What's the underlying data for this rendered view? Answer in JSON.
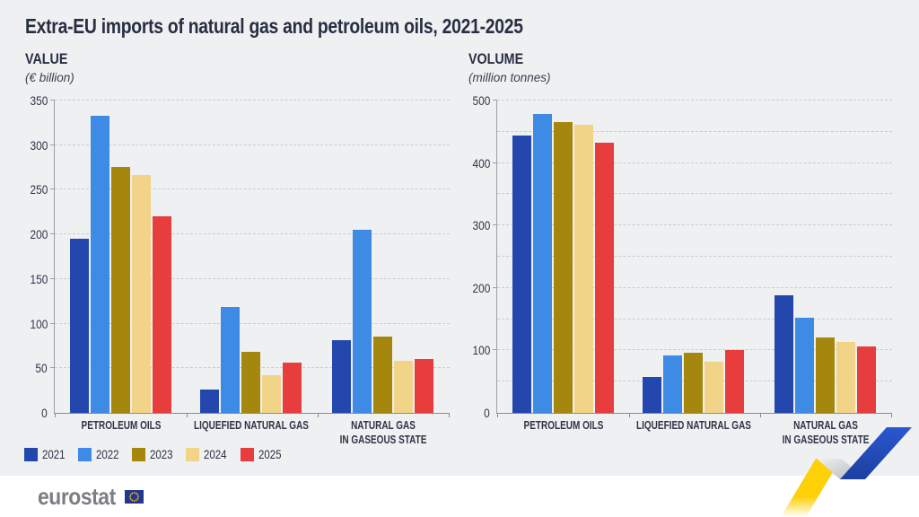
{
  "page": {
    "title": "Extra-EU imports of natural gas and petroleum oils, 2021-2025",
    "background_color": "#eff0f1"
  },
  "legend": {
    "position": "bottom-left",
    "items": [
      {
        "label": "2021",
        "color": "#2447ad"
      },
      {
        "label": "2022",
        "color": "#3d8be4"
      },
      {
        "label": "2023",
        "color": "#a5870e"
      },
      {
        "label": "2024",
        "color": "#f2d489"
      },
      {
        "label": "2025",
        "color": "#e73d3d"
      }
    ]
  },
  "chart_data": [
    {
      "type": "bar",
      "title": "VALUE",
      "subtitle": "(€ billion)",
      "ylabel": "€ billion",
      "ylim": [
        0,
        350
      ],
      "grid_step": 50,
      "label_step": 50,
      "grid": "horizontal-dashed",
      "categories": [
        "PETROLEUM OILS",
        "LIQUEFIED NATURAL GAS",
        "NATURAL GAS\nIN GASEOUS STATE"
      ],
      "series": [
        {
          "name": "2021",
          "color": "#2447ad",
          "values": [
            195,
            26,
            81
          ]
        },
        {
          "name": "2022",
          "color": "#3d8be4",
          "values": [
            333,
            119,
            205
          ]
        },
        {
          "name": "2023",
          "color": "#a5870e",
          "values": [
            276,
            68,
            86
          ]
        },
        {
          "name": "2024",
          "color": "#f2d489",
          "values": [
            267,
            42,
            58
          ]
        },
        {
          "name": "2025",
          "color": "#e73d3d",
          "values": [
            220,
            56,
            60
          ]
        }
      ]
    },
    {
      "type": "bar",
      "title": "VOLUME",
      "subtitle": "(million tonnes)",
      "ylabel": "million tonnes",
      "ylim": [
        0,
        500
      ],
      "grid_step": 50,
      "label_step": 100,
      "grid": "horizontal-dashed",
      "categories": [
        "PETROLEUM OILS",
        "LIQUEFIED NATURAL GAS",
        "NATURAL GAS\nIN GASEOUS STATE"
      ],
      "series": [
        {
          "name": "2021",
          "color": "#2447ad",
          "values": [
            444,
            58,
            188
          ]
        },
        {
          "name": "2022",
          "color": "#3d8be4",
          "values": [
            478,
            92,
            152
          ]
        },
        {
          "name": "2023",
          "color": "#a5870e",
          "values": [
            465,
            96,
            120
          ]
        },
        {
          "name": "2024",
          "color": "#f2d489",
          "values": [
            461,
            82,
            113
          ]
        },
        {
          "name": "2025",
          "color": "#e73d3d",
          "values": [
            433,
            101,
            107
          ]
        }
      ]
    }
  ],
  "footer": {
    "brand": "eurostat",
    "flag_field_color": "#26368f",
    "flag_star_color": "#ffd617"
  },
  "ribbon": {
    "yellow": "#fdd008",
    "gray": "#bfc2c5",
    "blue": "#2553cb"
  }
}
